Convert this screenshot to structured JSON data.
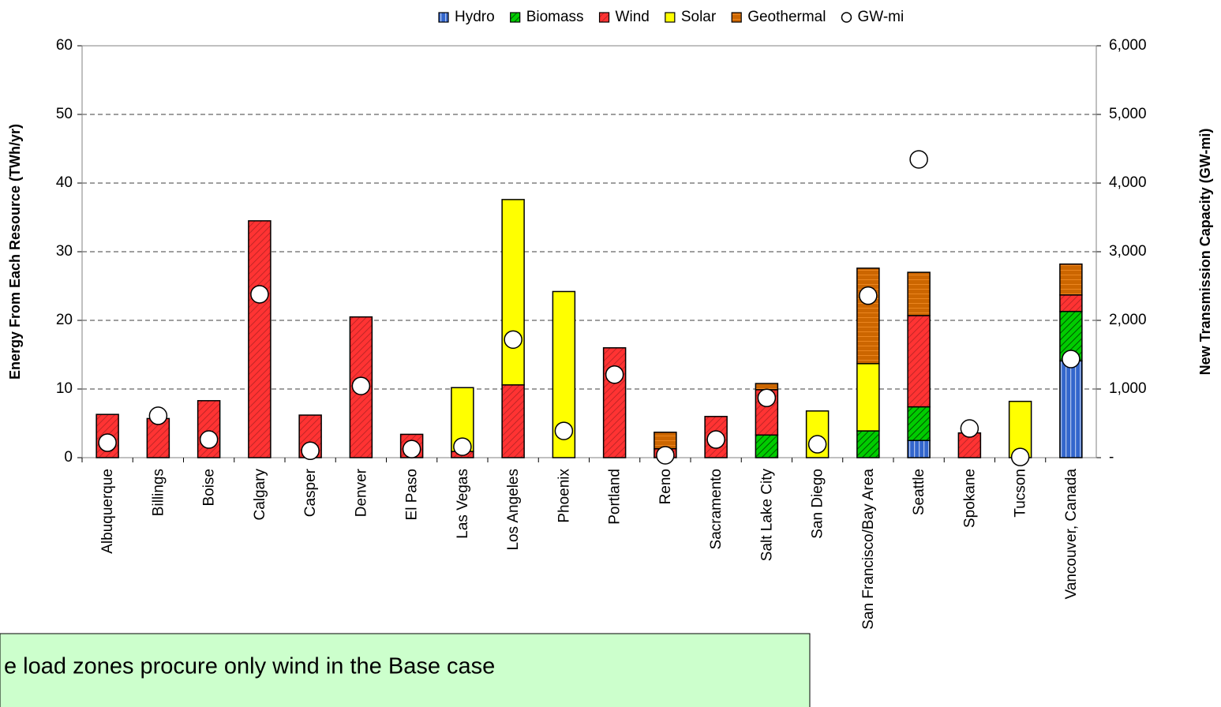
{
  "chart_data": {
    "type": "bar",
    "stacked": true,
    "y_label": "Energy From Each Resource (TWh/yr)",
    "y2_label": "New Transmission Capacity (GW-mi)",
    "annotation": "e load zones procure only wind in the Base case",
    "categories": [
      "Albuquerque",
      "Billings",
      "Boise",
      "Calgary",
      "Casper",
      "Denver",
      "El Paso",
      "Las Vegas",
      "Los Angeles",
      "Phoenix",
      "Portland",
      "Reno",
      "Sacramento",
      "Salt Lake City",
      "San Diego",
      "San Francisco/Bay Area",
      "Seattle",
      "Spokane",
      "Tucson",
      "Vancouver, Canada"
    ],
    "series": [
      {
        "name": "Hydro",
        "color": "#3366cc",
        "values": [
          0,
          0,
          0,
          0,
          0,
          0,
          0,
          0,
          0,
          0,
          0,
          0,
          0,
          0,
          0,
          0,
          2.5,
          0,
          0,
          14.1
        ]
      },
      {
        "name": "Biomass",
        "color": "#00cc00",
        "values": [
          0,
          0,
          0,
          0,
          0,
          0,
          0,
          0,
          0,
          0,
          0,
          0,
          0,
          3.3,
          0,
          3.9,
          4.9,
          0,
          0,
          7.2
        ]
      },
      {
        "name": "Wind",
        "color": "#ff3333",
        "values": [
          6.3,
          5.7,
          8.3,
          34.5,
          6.2,
          20.5,
          3.4,
          0.9,
          10.6,
          0,
          16.0,
          1.3,
          6.0,
          6.6,
          0,
          0,
          13.3,
          3.6,
          0,
          2.4
        ]
      },
      {
        "name": "Solar",
        "color": "#ffff00",
        "values": [
          0,
          0,
          0,
          0,
          0,
          0,
          0,
          9.3,
          27.0,
          24.2,
          0,
          0,
          0,
          0,
          6.8,
          9.8,
          0,
          0,
          8.2,
          0
        ]
      },
      {
        "name": "Geothermal",
        "color": "#cc6600",
        "values": [
          0,
          0,
          0,
          0,
          0,
          0,
          0,
          0,
          0,
          0,
          0,
          2.4,
          0,
          0.9,
          0,
          13.9,
          6.3,
          0,
          0,
          4.5
        ]
      },
      {
        "name": "GW-mi",
        "type": "scatter",
        "axis": "y2",
        "color": "#ffffff",
        "values": [
          218,
          610,
          264,
          2380,
          100,
          1045,
          125,
          160,
          1720,
          390,
          1210,
          35,
          264,
          870,
          195,
          2360,
          4345,
          425,
          10,
          1437
        ]
      }
    ],
    "ylim": [
      0,
      60
    ],
    "yticks": [
      0,
      10,
      20,
      30,
      40,
      50,
      60
    ],
    "y2lim": [
      0,
      6000
    ],
    "y2ticks": [
      {
        "value": 0,
        "label": "-"
      },
      {
        "value": 1000,
        "label": "1,000"
      },
      {
        "value": 2000,
        "label": "2,000"
      },
      {
        "value": 3000,
        "label": "3,000"
      },
      {
        "value": 4000,
        "label": "4,000"
      },
      {
        "value": 5000,
        "label": "5,000"
      },
      {
        "value": 6000,
        "label": "6,000"
      }
    ],
    "grid": true,
    "legend": "top"
  }
}
